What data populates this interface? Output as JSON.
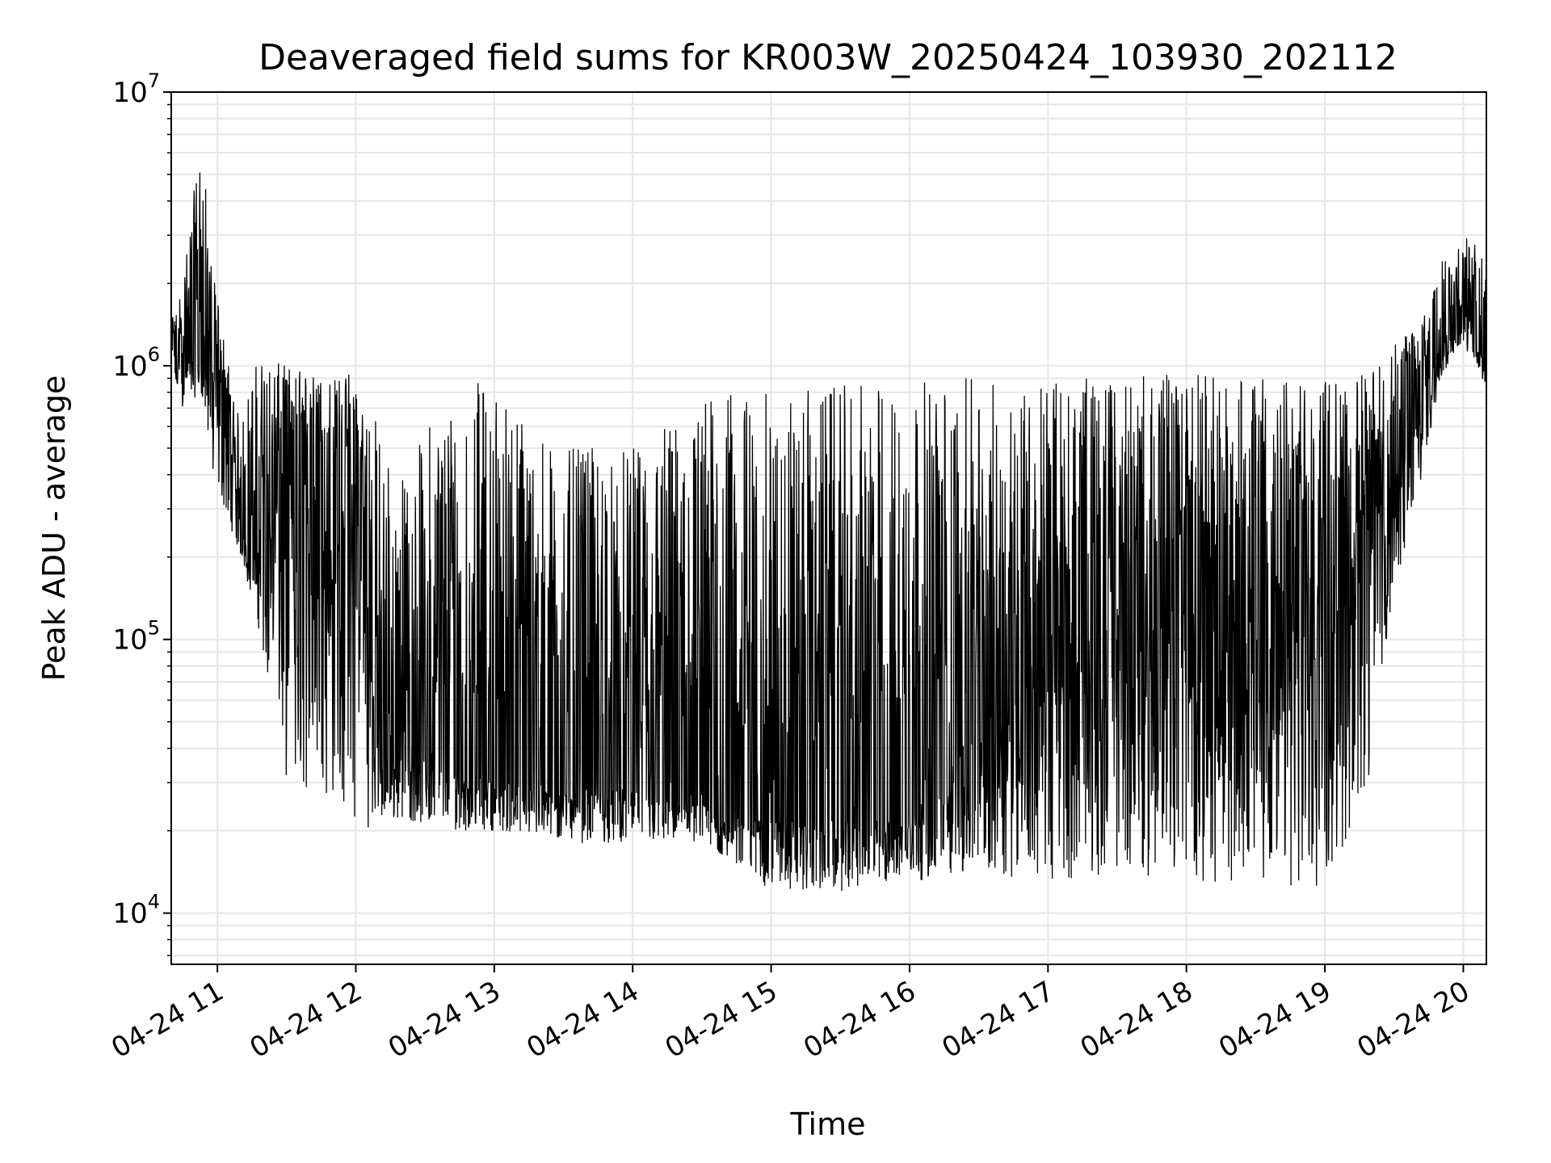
{
  "chart_data": {
    "type": "line",
    "title": "Deaveraged field sums for KR003W_20250424_103930_202112",
    "xlabel": "Time",
    "ylabel": "Peak ADU - average",
    "yscale": "log",
    "ylim": [
      6500,
      10000000
    ],
    "xlim": [
      "04-24 10:40",
      "04-24 20:10"
    ],
    "grid": true,
    "line_color": "#000000",
    "grid_color": "#e6e6e6",
    "x_ticks": [
      "04-24 11",
      "04-24 12",
      "04-24 13",
      "04-24 14",
      "04-24 15",
      "04-24 16",
      "04-24 17",
      "04-24 18",
      "04-24 19",
      "04-24 20"
    ],
    "y_ticks": [
      {
        "value": 10000,
        "base": "10",
        "exp": "4"
      },
      {
        "value": 100000,
        "base": "10",
        "exp": "5"
      },
      {
        "value": 1000000,
        "base": "10",
        "exp": "6"
      },
      {
        "value": 10000000,
        "base": "10",
        "exp": "7"
      }
    ],
    "series": [
      {
        "envelope": [
          {
            "x": "04-24 10:40",
            "low": 800000,
            "high": 1500000
          },
          {
            "x": "04-24 10:45",
            "low": 700000,
            "high": 2000000
          },
          {
            "x": "04-24 10:53",
            "low": 800000,
            "high": 7200000
          },
          {
            "x": "04-24 10:58",
            "low": 400000,
            "high": 2200000
          },
          {
            "x": "04-24 11:10",
            "low": 200000,
            "high": 600000
          },
          {
            "x": "04-24 11:17",
            "low": 120000,
            "high": 1100000
          },
          {
            "x": "04-24 11:30",
            "low": 30000,
            "high": 1000000
          },
          {
            "x": "04-24 11:50",
            "low": 25000,
            "high": 900000
          },
          {
            "x": "04-24 12:00",
            "low": 20000,
            "high": 1000000
          },
          {
            "x": "04-24 12:20",
            "low": 22000,
            "high": 400000
          },
          {
            "x": "04-24 12:40",
            "low": 20000,
            "high": 900000
          },
          {
            "x": "04-24 13:00",
            "low": 20000,
            "high": 900000
          },
          {
            "x": "04-24 13:30",
            "low": 18000,
            "high": 500000
          },
          {
            "x": "04-24 14:00",
            "low": 18000,
            "high": 500000
          },
          {
            "x": "04-24 14:30",
            "low": 18000,
            "high": 800000
          },
          {
            "x": "04-24 15:00",
            "low": 12000,
            "high": 800000
          },
          {
            "x": "04-24 15:30",
            "low": 12000,
            "high": 850000
          },
          {
            "x": "04-24 16:00",
            "low": 13000,
            "high": 900000
          },
          {
            "x": "04-24 16:30",
            "low": 14000,
            "high": 900000
          },
          {
            "x": "04-24 17:00",
            "low": 13000,
            "high": 900000
          },
          {
            "x": "04-24 17:30",
            "low": 14000,
            "high": 900000
          },
          {
            "x": "04-24 18:00",
            "low": 13000,
            "high": 950000
          },
          {
            "x": "04-24 18:30",
            "low": 13000,
            "high": 900000
          },
          {
            "x": "04-24 19:00",
            "low": 12000,
            "high": 900000
          },
          {
            "x": "04-24 19:20",
            "low": 30000,
            "high": 950000
          },
          {
            "x": "04-24 19:30",
            "low": 150000,
            "high": 1200000
          },
          {
            "x": "04-24 19:40",
            "low": 300000,
            "high": 1500000
          },
          {
            "x": "04-24 19:50",
            "low": 900000,
            "high": 2500000
          },
          {
            "x": "04-24 20:00",
            "low": 1200000,
            "high": 3100000
          },
          {
            "x": "04-24 20:10",
            "low": 800000,
            "high": 2500000
          }
        ],
        "typical": [
          {
            "x": "04-24 10:40",
            "y": 1200000
          },
          {
            "x": "04-24 10:58",
            "y": 1000000
          },
          {
            "x": "04-24 11:05",
            "y": 400000
          },
          {
            "x": "04-24 11:15",
            "y": 200000
          },
          {
            "x": "04-24 11:30",
            "y": 500000
          },
          {
            "x": "04-24 12:00",
            "y": 400000
          },
          {
            "x": "04-24 12:10",
            "y": 40000
          },
          {
            "x": "04-24 13:00",
            "y": 30000
          },
          {
            "x": "04-24 14:00",
            "y": 28000
          },
          {
            "x": "04-24 15:00",
            "y": 22000
          },
          {
            "x": "04-24 16:00",
            "y": 22000
          },
          {
            "x": "04-24 17:00",
            "y": 100000
          },
          {
            "x": "04-24 18:00",
            "y": 150000
          },
          {
            "x": "04-24 19:00",
            "y": 200000
          },
          {
            "x": "04-24 19:30",
            "y": 400000
          },
          {
            "x": "04-24 19:50",
            "y": 1200000
          },
          {
            "x": "04-24 20:00",
            "y": 1600000
          },
          {
            "x": "04-24 20:10",
            "y": 1200000
          }
        ]
      }
    ]
  }
}
